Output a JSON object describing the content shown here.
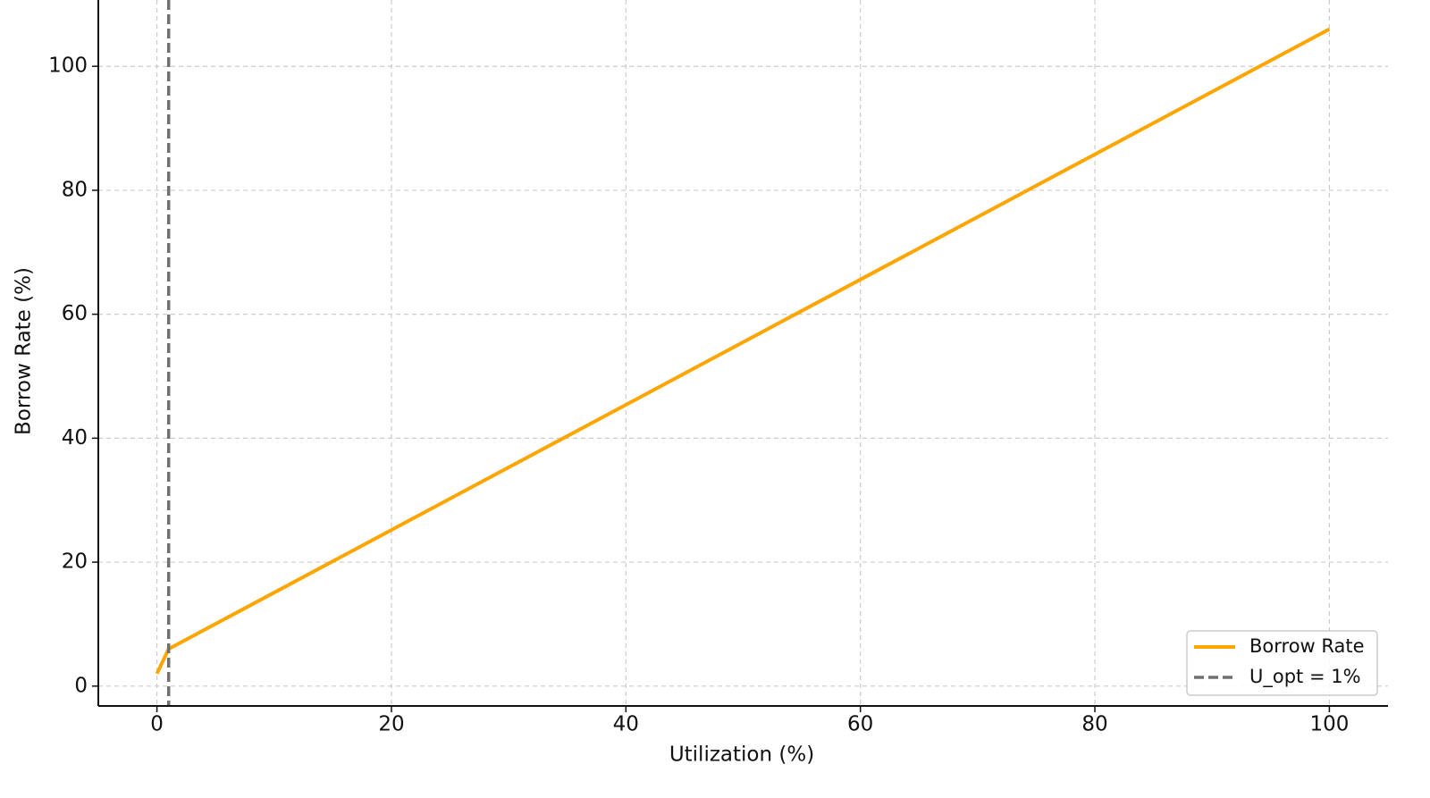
{
  "chart_data": {
    "type": "line",
    "x_label": "Utilization (%)",
    "y_label": "Borrow Rate (%)",
    "x": [
      0,
      1,
      100
    ],
    "series": [
      {
        "name": "Borrow Rate",
        "color": "#ffa500",
        "values": [
          2,
          6,
          106
        ]
      }
    ],
    "vline": {
      "x": 1,
      "name": "U_opt = 1%",
      "color": "#707070"
    },
    "xlim": [
      -5,
      105
    ],
    "xticks": [
      0,
      20,
      40,
      60,
      80,
      100
    ],
    "ylim": [
      -3.2,
      110.7
    ],
    "yticks": [
      0,
      20,
      40,
      60,
      80,
      100
    ],
    "grid": true,
    "legend": "lower right"
  }
}
